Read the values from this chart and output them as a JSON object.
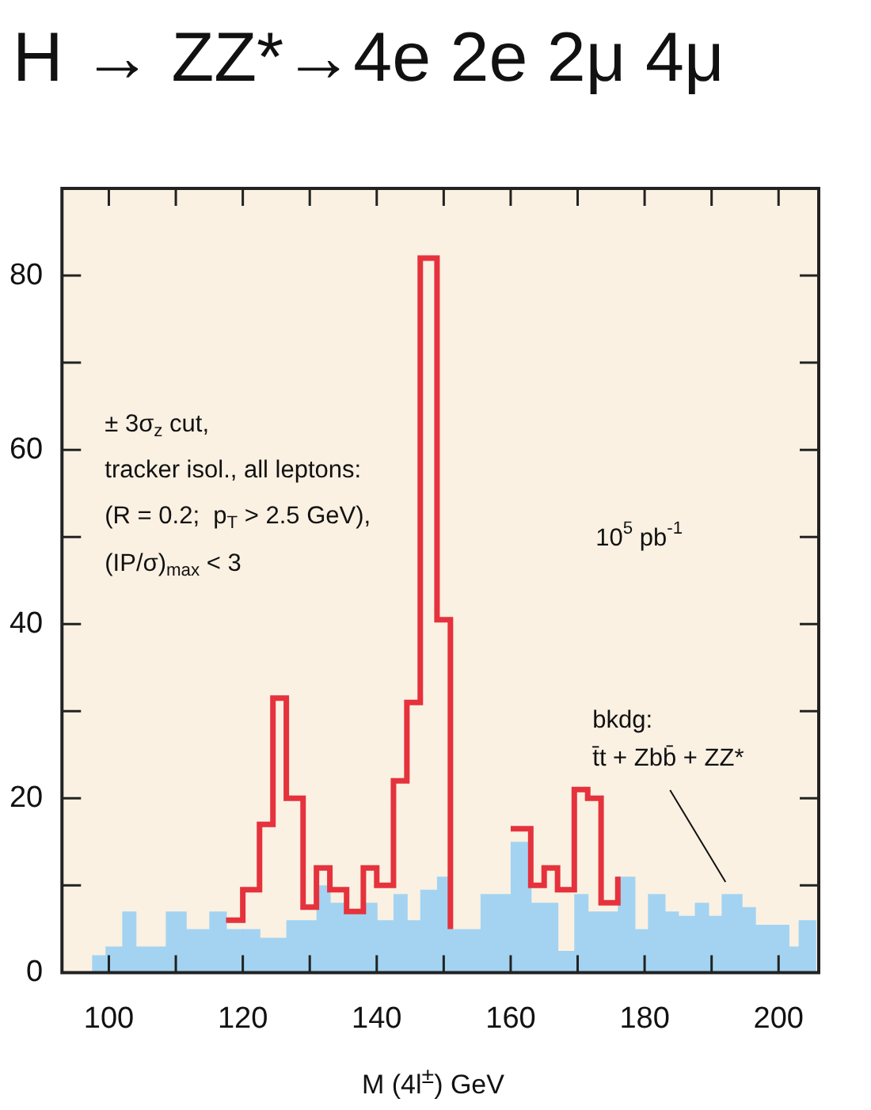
{
  "chart_data": {
    "type": "histogram",
    "title": "H → ZZ*→4e 2e 2μ 4μ",
    "xlabel": "M (4l$^{±}$)  GeV",
    "xlim": [
      93,
      206
    ],
    "ylim": [
      0,
      90
    ],
    "xticks": [
      100,
      {
        "value": 110,
        "label": null
      },
      120,
      {
        "value": 130,
        "label": null
      },
      140,
      {
        "value": 150,
        "label": null
      },
      160,
      {
        "value": 170,
        "label": null
      },
      180,
      {
        "value": 190,
        "label": null
      },
      200
    ],
    "yticks": [
      0,
      {
        "value": 10,
        "label": null
      },
      20,
      {
        "value": 30,
        "label": null
      },
      40,
      {
        "value": 50,
        "label": null
      },
      60,
      {
        "value": 70,
        "label": null
      },
      80
    ],
    "annotations": [
      "± 3σ$_{z}$ cut,",
      "tracker isol., all leptons:",
      "(R = 0.2;  p$_{T}$ > 2.5 GeV),",
      "(IP/σ)$_{max}$ < 3",
      "10$^{5}$ pb$^{-1}$",
      "bkdg:\nt̄t + Zbb̄ + ZZ*"
    ],
    "bins": [
      97.5,
      99.5,
      102,
      104,
      108.5,
      111.5,
      115,
      117.5,
      120,
      122.5,
      124.5,
      126.5,
      129,
      131,
      133,
      135.5,
      138,
      140,
      142.5,
      144.5,
      146.5,
      149,
      151,
      155.5,
      160,
      163,
      165,
      167,
      169.5,
      171.5,
      173.5,
      176,
      178.5,
      180.5,
      183,
      185,
      187.5,
      189.5,
      191.5,
      194.5,
      196.5,
      201.5,
      203,
      205.5
    ],
    "series": [
      {
        "color": "#a3d3f1",
        "values": [
          2,
          3,
          7,
          3,
          7,
          5,
          7,
          5,
          5,
          4,
          4,
          6,
          6,
          10,
          8,
          7,
          8,
          6,
          9,
          6,
          9.5,
          11,
          5,
          9,
          15,
          8,
          8,
          2.5,
          9,
          7,
          7,
          11,
          5,
          9,
          7,
          6.5,
          8,
          6.5,
          9,
          7.5,
          5.5,
          3,
          6
        ]
      },
      {
        "type": "step",
        "color": "#e5323c",
        "x": [
          117.5,
          120,
          122.5,
          124.5,
          126.5,
          129,
          131,
          133,
          135.5,
          138,
          140,
          142.5,
          144.5,
          146.5,
          149,
          151,
          155.5,
          160,
          163,
          165,
          167,
          169.5,
          171.5,
          173.5,
          176
        ],
        "values": [
          6,
          9.5,
          17,
          31.5,
          20,
          7.5,
          12,
          9.5,
          7,
          12,
          10,
          22,
          31,
          82,
          40.5,
          5,
          null,
          16.5,
          10,
          12,
          9.5,
          21,
          20,
          8,
          11
        ]
      }
    ]
  }
}
